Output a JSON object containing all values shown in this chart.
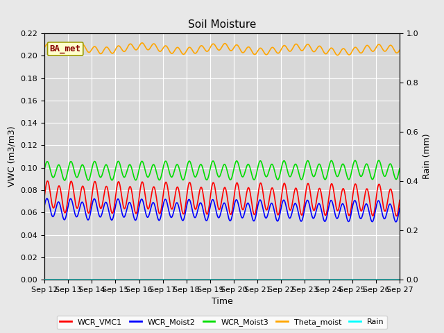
{
  "title": "Soil Moisture",
  "xlabel": "Time",
  "ylabel_left": "VWC (m3/m3)",
  "ylabel_right": "Rain (mm)",
  "annotation": "BA_met",
  "x_tick_labels": [
    "Sep 12",
    "Sep 13",
    "Sep 14",
    "Sep 15",
    "Sep 16",
    "Sep 17",
    "Sep 18",
    "Sep 19",
    "Sep 20",
    "Sep 21",
    "Sep 22",
    "Sep 23",
    "Sep 24",
    "Sep 25",
    "Sep 26",
    "Sep 27"
  ],
  "ylim_left": [
    0.0,
    0.22
  ],
  "ylim_right": [
    0.0,
    1.0
  ],
  "n_days": 15,
  "n_points": 3000,
  "series": {
    "WCR_VMC1": {
      "color": "#ff0000",
      "base": 0.074,
      "amp": 0.012,
      "freq": 2.0,
      "phase": 0.0,
      "amp2": 0.003,
      "freq2": 1.0,
      "phase2": 0.0,
      "trend": -0.003
    },
    "WCR_Moist2": {
      "color": "#0000ff",
      "base": 0.063,
      "amp": 0.008,
      "freq": 2.0,
      "phase": 0.3,
      "amp2": 0.002,
      "freq2": 1.0,
      "phase2": 0.2,
      "trend": -0.002
    },
    "WCR_Moist3": {
      "color": "#00dd00",
      "base": 0.097,
      "amp": 0.007,
      "freq": 2.0,
      "phase": 0.15,
      "amp2": 0.002,
      "freq2": 1.0,
      "phase2": 0.15,
      "trend": 0.001
    },
    "Theta_moist": {
      "color": "#ffa500",
      "base": 0.207,
      "amp": 0.003,
      "freq": 2.0,
      "phase": 0.0,
      "amp2": 0.002,
      "freq2": 0.3,
      "phase2": 0.0,
      "trend": -0.002
    },
    "Rain": {
      "color": "#00ffff",
      "base": 0.0,
      "amp": 0.0,
      "freq": 1.0,
      "phase": 0.0,
      "amp2": 0.0,
      "freq2": 1.0,
      "phase2": 0.0,
      "trend": 0.0
    }
  },
  "yticks_left": [
    0.0,
    0.02,
    0.04,
    0.06,
    0.08,
    0.1,
    0.12,
    0.14,
    0.16,
    0.18,
    0.2,
    0.22
  ],
  "yticks_right": [
    0.0,
    0.2,
    0.4,
    0.6,
    0.8,
    1.0
  ],
  "legend_labels": [
    "WCR_VMC1",
    "WCR_Moist2",
    "WCR_Moist3",
    "Theta_moist",
    "Rain"
  ],
  "legend_colors": [
    "#ff0000",
    "#0000ff",
    "#00dd00",
    "#ffa500",
    "#00ffff"
  ],
  "fig_bg_color": "#e8e8e8",
  "plot_bg_color": "#d8d8d8",
  "grid_color": "#ffffff",
  "annotation_bg": "#ffffcc",
  "annotation_border_color": "#999900",
  "annotation_text_color": "#880000",
  "tick_fontsize": 8,
  "label_fontsize": 9,
  "title_fontsize": 11,
  "legend_fontsize": 8,
  "linewidth": 1.2
}
